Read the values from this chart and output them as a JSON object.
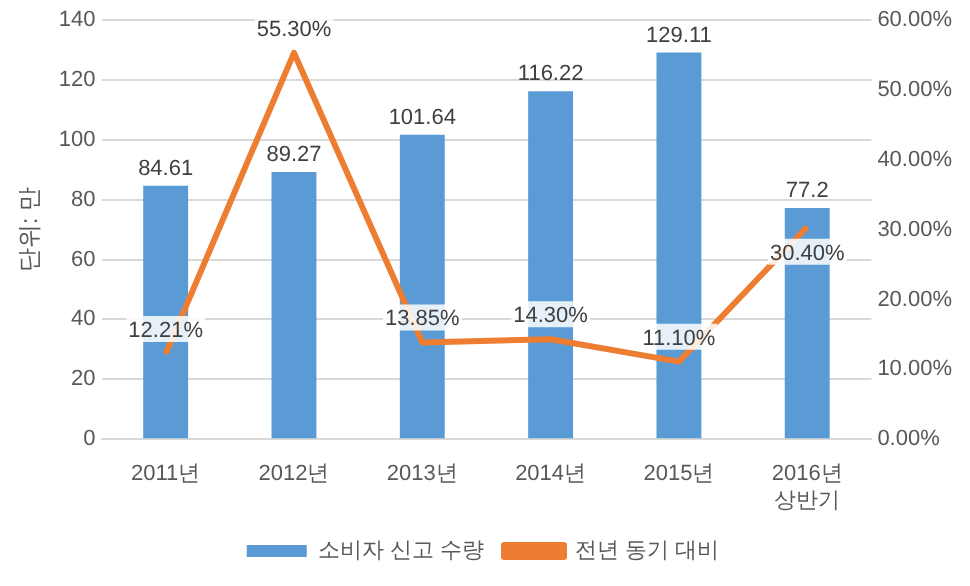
{
  "chart_data": {
    "type": "bar",
    "ylabel": "단위: 만",
    "categories": [
      "2011년",
      "2012년",
      "2013년",
      "2014년",
      "2015년",
      "2016년\n상반기"
    ],
    "series": [
      {
        "name": "소비자 신고 수량",
        "color": "#5b9bd5",
        "values": [
          84.61,
          89.27,
          101.64,
          116.22,
          129.11,
          77.2
        ],
        "value_labels": [
          "84.61",
          "89.27",
          "101.64",
          "116.22",
          "129.11",
          "77.2"
        ]
      },
      {
        "name": "전년 동기 대비",
        "type": "line",
        "axis": "y2",
        "color": "#ed7d31",
        "values": [
          12.21,
          55.3,
          13.85,
          14.3,
          11.1,
          30.4
        ],
        "value_labels": [
          "12.21%",
          "55.30%",
          "13.85%",
          "14.30%",
          "11.10%",
          "30.40%"
        ]
      }
    ],
    "ylim": [
      0,
      140
    ],
    "yticks": [
      0,
      20,
      40,
      60,
      80,
      100,
      120,
      140
    ],
    "y2lim": [
      0,
      60
    ],
    "y2ticks": [
      {
        "value": 0,
        "label": "0.00%"
      },
      {
        "value": 10,
        "label": "10.00%"
      },
      {
        "value": 20,
        "label": "20.00%"
      },
      {
        "value": 30,
        "label": "30.00%"
      },
      {
        "value": 40,
        "label": "40.00%"
      },
      {
        "value": 50,
        "label": "50.00%"
      },
      {
        "value": 60,
        "label": "60.00%"
      }
    ],
    "grid": "y",
    "legend": "bottom",
    "marker": "none",
    "line_style": "solid"
  }
}
